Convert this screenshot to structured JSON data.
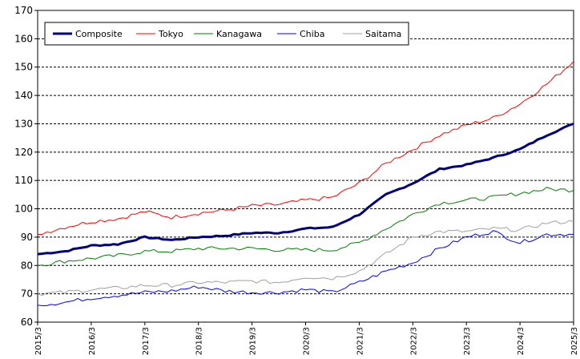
{
  "chart_data": {
    "type": "line",
    "title": "",
    "xlabel": "",
    "ylabel": "",
    "ylim": [
      60,
      170
    ],
    "yticks": [
      60,
      70,
      80,
      90,
      100,
      110,
      120,
      130,
      140,
      150,
      160,
      170
    ],
    "grid": "horizontal dashed",
    "legend_position": "top-left",
    "x_tick_labels": [
      "2015/3",
      "2016/3",
      "2017/3",
      "2018/3",
      "2019/3",
      "2020/3",
      "2021/3",
      "2022/3",
      "2023/3",
      "2024/3",
      "2025/3"
    ],
    "x_range_months": [
      "2015/3",
      "2025/3"
    ],
    "series": [
      {
        "name": "Composite",
        "color": "#000080",
        "width": 3,
        "anchors": [
          [
            "2015/3",
            84
          ],
          [
            "2015/9",
            85
          ],
          [
            "2016/3",
            87
          ],
          [
            "2016/9",
            87.5
          ],
          [
            "2017/3",
            90
          ],
          [
            "2017/9",
            89
          ],
          [
            "2018/3",
            90
          ],
          [
            "2018/9",
            90.5
          ],
          [
            "2019/3",
            91.5
          ],
          [
            "2019/9",
            91.5
          ],
          [
            "2020/3",
            93
          ],
          [
            "2020/9",
            93.5
          ],
          [
            "2021/3",
            98
          ],
          [
            "2021/9",
            105
          ],
          [
            "2022/3",
            109
          ],
          [
            "2022/9",
            114
          ],
          [
            "2023/3",
            115.5
          ],
          [
            "2023/9",
            118
          ],
          [
            "2024/3",
            121
          ],
          [
            "2024/9",
            126
          ],
          [
            "2025/3",
            130
          ]
        ]
      },
      {
        "name": "Tokyo",
        "color": "#ff0000",
        "width": 1,
        "anchors": [
          [
            "2015/3",
            91
          ],
          [
            "2015/9",
            93.5
          ],
          [
            "2016/3",
            95.5
          ],
          [
            "2016/9",
            96.5
          ],
          [
            "2017/3",
            99
          ],
          [
            "2017/9",
            97
          ],
          [
            "2018/3",
            98.5
          ],
          [
            "2018/9",
            99.5
          ],
          [
            "2019/3",
            101
          ],
          [
            "2019/9",
            101.5
          ],
          [
            "2020/3",
            103
          ],
          [
            "2020/9",
            104
          ],
          [
            "2021/3",
            109
          ],
          [
            "2021/9",
            116
          ],
          [
            "2022/3",
            121
          ],
          [
            "2022/9",
            126
          ],
          [
            "2023/3",
            129.5
          ],
          [
            "2023/9",
            132
          ],
          [
            "2024/3",
            137
          ],
          [
            "2024/9",
            144
          ],
          [
            "2025/3",
            152
          ]
        ]
      },
      {
        "name": "Kanagawa",
        "color": "#008000",
        "width": 1,
        "anchors": [
          [
            "2015/3",
            80
          ],
          [
            "2015/9",
            81.5
          ],
          [
            "2016/3",
            82.5
          ],
          [
            "2016/9",
            83.5
          ],
          [
            "2017/3",
            85
          ],
          [
            "2017/9",
            85
          ],
          [
            "2018/3",
            86
          ],
          [
            "2018/9",
            86
          ],
          [
            "2019/3",
            86
          ],
          [
            "2019/9",
            85.5
          ],
          [
            "2020/3",
            85.5
          ],
          [
            "2020/9",
            85.5
          ],
          [
            "2021/3",
            88
          ],
          [
            "2021/9",
            93
          ],
          [
            "2022/3",
            98
          ],
          [
            "2022/9",
            102
          ],
          [
            "2023/3",
            103
          ],
          [
            "2023/9",
            104
          ],
          [
            "2024/3",
            105.5
          ],
          [
            "2024/9",
            107
          ],
          [
            "2025/3",
            106.5
          ]
        ]
      },
      {
        "name": "Chiba",
        "color": "#0000ff",
        "width": 1,
        "anchors": [
          [
            "2015/3",
            66
          ],
          [
            "2015/9",
            67
          ],
          [
            "2016/3",
            68.5
          ],
          [
            "2016/9",
            69.5
          ],
          [
            "2017/3",
            70.5
          ],
          [
            "2017/9",
            71
          ],
          [
            "2018/3",
            72.5
          ],
          [
            "2018/9",
            71
          ],
          [
            "2019/3",
            70.5
          ],
          [
            "2019/9",
            70.5
          ],
          [
            "2020/3",
            71.5
          ],
          [
            "2020/9",
            70.5
          ],
          [
            "2021/3",
            74
          ],
          [
            "2021/9",
            78
          ],
          [
            "2022/3",
            81
          ],
          [
            "2022/9",
            86
          ],
          [
            "2023/3",
            90
          ],
          [
            "2023/9",
            92
          ],
          [
            "2024/3",
            88
          ],
          [
            "2024/9",
            91
          ],
          [
            "2025/3",
            91
          ]
        ]
      },
      {
        "name": "Saitama",
        "color": "#a0a0a0",
        "width": 1,
        "anchors": [
          [
            "2015/3",
            70
          ],
          [
            "2015/9",
            70.5
          ],
          [
            "2016/3",
            71.5
          ],
          [
            "2016/9",
            72
          ],
          [
            "2017/3",
            73
          ],
          [
            "2017/9",
            73
          ],
          [
            "2018/3",
            74
          ],
          [
            "2018/9",
            74
          ],
          [
            "2019/3",
            74.5
          ],
          [
            "2019/9",
            74
          ],
          [
            "2020/3",
            76
          ],
          [
            "2020/9",
            75.5
          ],
          [
            "2021/3",
            78
          ],
          [
            "2021/9",
            84
          ],
          [
            "2022/3",
            90
          ],
          [
            "2022/9",
            92
          ],
          [
            "2023/3",
            92
          ],
          [
            "2023/9",
            93
          ],
          [
            "2024/3",
            92.5
          ],
          [
            "2024/9",
            95
          ],
          [
            "2025/3",
            95.5
          ]
        ]
      }
    ]
  }
}
